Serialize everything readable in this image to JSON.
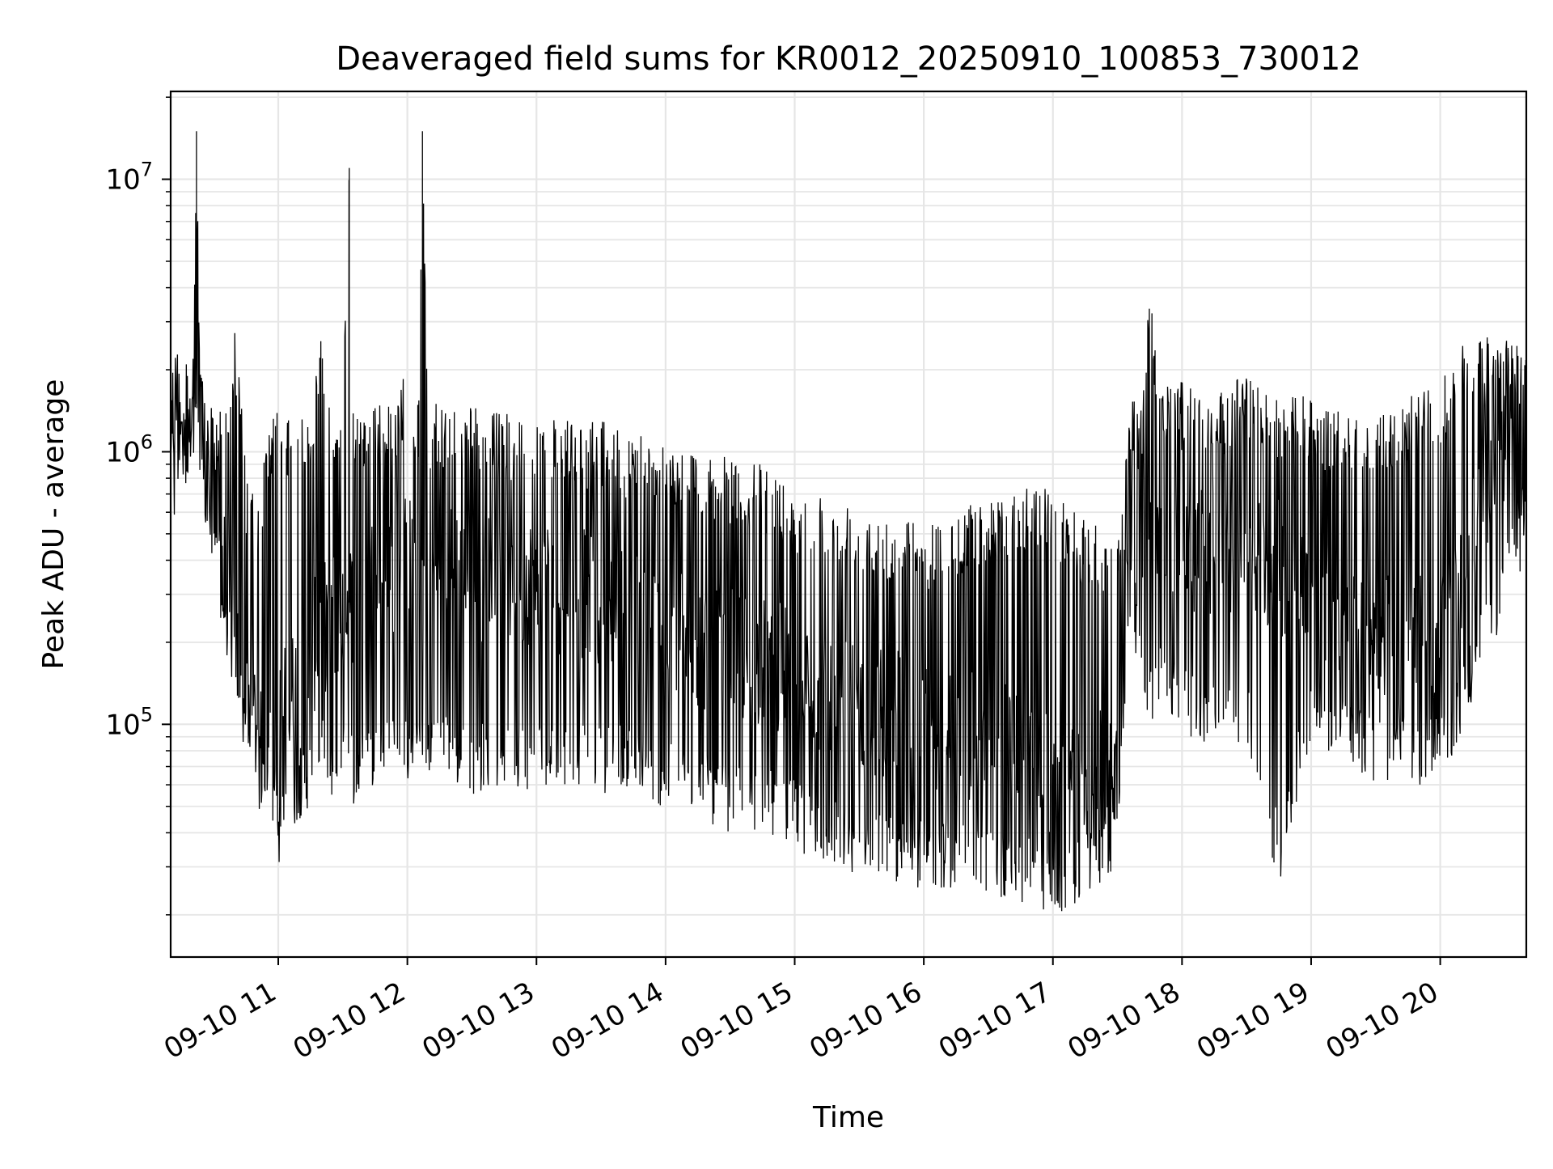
{
  "chart_data": {
    "type": "line",
    "title": "Deaveraged field sums for KR0012_20250910_100853_730012",
    "xlabel": "Time",
    "ylabel": "Peak ADU - average",
    "yscale": "log",
    "grid": true,
    "line_color": "#000000",
    "grid_color": "#e6e6e6",
    "xlim": [
      "2025-09-10 10:10",
      "2025-09-10 20:40"
    ],
    "ylim": [
      14000,
      21000000
    ],
    "x_ticks": [
      {
        "time": "2025-09-10 11:00",
        "label": "09-10 11"
      },
      {
        "time": "2025-09-10 12:00",
        "label": "09-10 12"
      },
      {
        "time": "2025-09-10 13:00",
        "label": "09-10 13"
      },
      {
        "time": "2025-09-10 14:00",
        "label": "09-10 14"
      },
      {
        "time": "2025-09-10 15:00",
        "label": "09-10 15"
      },
      {
        "time": "2025-09-10 16:00",
        "label": "09-10 16"
      },
      {
        "time": "2025-09-10 17:00",
        "label": "09-10 17"
      },
      {
        "time": "2025-09-10 18:00",
        "label": "09-10 18"
      },
      {
        "time": "2025-09-10 19:00",
        "label": "09-10 19"
      },
      {
        "time": "2025-09-10 20:00",
        "label": "09-10 20"
      }
    ],
    "y_ticks": [
      {
        "value": 100000,
        "base": "10",
        "exp": "5"
      },
      {
        "value": 1000000,
        "base": "10",
        "exp": "6"
      },
      {
        "value": 10000000,
        "base": "10",
        "exp": "7"
      }
    ],
    "series": [
      {
        "x": [
          "2025-09-10 10:10",
          "2025-09-10 10:12",
          "2025-09-10 10:15",
          "2025-09-10 10:20",
          "2025-09-10 10:22",
          "2025-09-10 10:24",
          "2025-09-10 10:26",
          "2025-09-10 10:28",
          "2025-09-10 10:30",
          "2025-09-10 10:35",
          "2025-09-10 10:40",
          "2025-09-10 10:45",
          "2025-09-10 10:50",
          "2025-09-10 10:55",
          "2025-09-10 11:00",
          "2025-09-10 11:05",
          "2025-09-10 11:10",
          "2025-09-10 11:15",
          "2025-09-10 11:20",
          "2025-09-10 11:25",
          "2025-09-10 11:30",
          "2025-09-10 11:33",
          "2025-09-10 11:35",
          "2025-09-10 11:40",
          "2025-09-10 11:45",
          "2025-09-10 11:50",
          "2025-09-10 11:55",
          "2025-09-10 12:00",
          "2025-09-10 12:05",
          "2025-09-10 12:07",
          "2025-09-10 12:10",
          "2025-09-10 12:20",
          "2025-09-10 12:30",
          "2025-09-10 12:40",
          "2025-09-10 12:50",
          "2025-09-10 13:00",
          "2025-09-10 13:10",
          "2025-09-10 13:20",
          "2025-09-10 13:30",
          "2025-09-10 13:40",
          "2025-09-10 13:50",
          "2025-09-10 14:00",
          "2025-09-10 14:15",
          "2025-09-10 14:30",
          "2025-09-10 14:45",
          "2025-09-10 15:00",
          "2025-09-10 15:15",
          "2025-09-10 15:30",
          "2025-09-10 15:45",
          "2025-09-10 16:00",
          "2025-09-10 16:15",
          "2025-09-10 16:30",
          "2025-09-10 16:45",
          "2025-09-10 17:00",
          "2025-09-10 17:10",
          "2025-09-10 17:20",
          "2025-09-10 17:30",
          "2025-09-10 17:35",
          "2025-09-10 17:40",
          "2025-09-10 17:45",
          "2025-09-10 17:50",
          "2025-09-10 18:00",
          "2025-09-10 18:15",
          "2025-09-10 18:30",
          "2025-09-10 18:45",
          "2025-09-10 19:00",
          "2025-09-10 19:15",
          "2025-09-10 19:30",
          "2025-09-10 19:45",
          "2025-09-10 20:00",
          "2025-09-10 20:10",
          "2025-09-10 20:20",
          "2025-09-10 20:30",
          "2025-09-10 20:40"
        ],
        "high": [
          1800000,
          2200000,
          2400000,
          2100000,
          15000000,
          1900000,
          1700000,
          1500000,
          1400000,
          1600000,
          3000000,
          900000,
          600000,
          1200000,
          1500000,
          1300000,
          1400000,
          1500000,
          2800000,
          1500000,
          1500000,
          11000000,
          1500000,
          1500000,
          1500000,
          1500000,
          1500000,
          2200000,
          1500000,
          15000000,
          1500000,
          1500000,
          1500000,
          1400000,
          1400000,
          1400000,
          1300000,
          1300000,
          1300000,
          1200000,
          1200000,
          1100000,
          1000000,
          950000,
          900000,
          750000,
          700000,
          650000,
          600000,
          550000,
          600000,
          700000,
          750000,
          750000,
          600000,
          550000,
          500000,
          1700000,
          1500000,
          4000000,
          2000000,
          1800000,
          1600000,
          2000000,
          1600000,
          1600000,
          1400000,
          1300000,
          1600000,
          1800000,
          2500000,
          2600000,
          2800000,
          2500000
        ],
        "low": [
          600000,
          500000,
          800000,
          700000,
          1000000,
          600000,
          500000,
          400000,
          300000,
          200000,
          120000,
          70000,
          50000,
          40000,
          30000,
          40000,
          45000,
          50000,
          60000,
          50000,
          55000,
          60000,
          50000,
          55000,
          60000,
          70000,
          65000,
          60000,
          70000,
          60000,
          65000,
          60000,
          55000,
          60000,
          55000,
          60000,
          55000,
          60000,
          55000,
          60000,
          50000,
          50000,
          45000,
          40000,
          40000,
          35000,
          30000,
          28000,
          26000,
          25000,
          25000,
          24000,
          22000,
          20000,
          20000,
          25000,
          30000,
          200000,
          150000,
          100000,
          120000,
          90000,
          80000,
          80000,
          25000,
          90000,
          70000,
          60000,
          60000,
          60000,
          90000,
          150000,
          250000,
          400000
        ],
        "mid": [
          1200000,
          1500000,
          1600000,
          1400000,
          1500000,
          1200000,
          900000,
          700000,
          600000,
          350000,
          200000,
          120000,
          100000,
          90000,
          100000,
          120000,
          140000,
          180000,
          220000,
          250000,
          270000,
          280000,
          300000,
          320000,
          350000,
          380000,
          380000,
          400000,
          400000,
          400000,
          380000,
          370000,
          360000,
          350000,
          340000,
          330000,
          320000,
          300000,
          280000,
          260000,
          240000,
          220000,
          200000,
          180000,
          170000,
          150000,
          130000,
          120000,
          110000,
          100000,
          90000,
          85000,
          80000,
          60000,
          55000,
          60000,
          80000,
          500000,
          600000,
          550000,
          500000,
          450000,
          420000,
          400000,
          380000,
          300000,
          250000,
          220000,
          200000,
          220000,
          400000,
          700000,
          1000000,
          1300000
        ]
      }
    ]
  }
}
